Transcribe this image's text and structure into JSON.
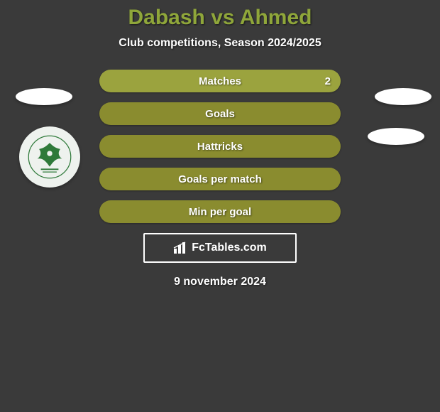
{
  "title": "Dabash vs Ahmed",
  "title_color": "#8fa63a",
  "subtitle": "Club competitions, Season 2024/2025",
  "background_color": "#3a3a3a",
  "stats": {
    "row_bg": "#8a8c2f",
    "row_bg_highlight": "#9ba33e",
    "label_color": "#ffffff",
    "rows": [
      {
        "label": "Matches",
        "right": "2",
        "highlight": true
      },
      {
        "label": "Goals",
        "right": "",
        "highlight": false
      },
      {
        "label": "Hattricks",
        "right": "",
        "highlight": false
      },
      {
        "label": "Goals per match",
        "right": "",
        "highlight": false
      },
      {
        "label": "Min per goal",
        "right": "",
        "highlight": false
      }
    ]
  },
  "branding": {
    "icon": "bars-icon",
    "text": "FcTables.com"
  },
  "date": "9 november 2024",
  "logo": {
    "primary": "#2f7a3a",
    "bg": "#eef2ee"
  }
}
